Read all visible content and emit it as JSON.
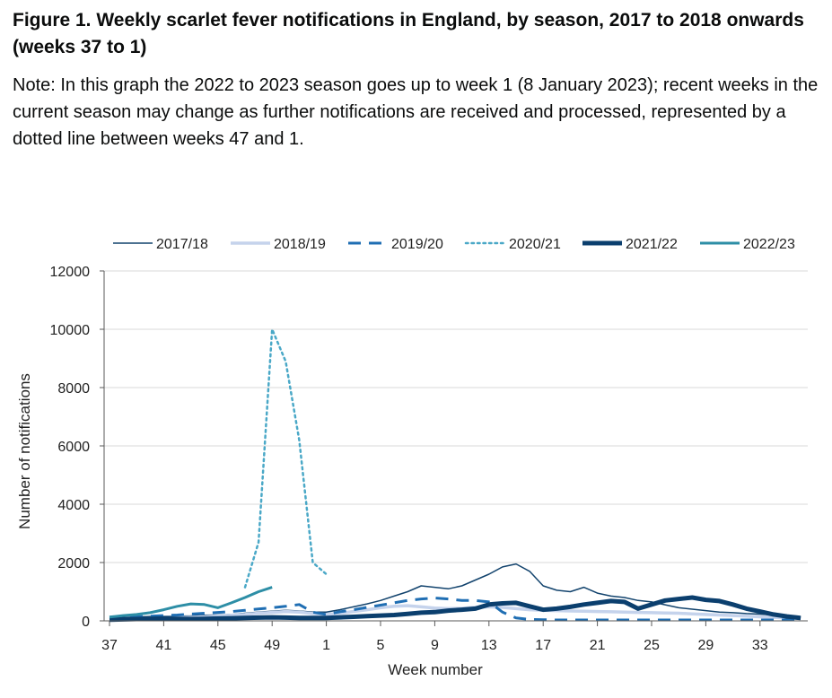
{
  "title": "Figure 1. Weekly scarlet fever notifications in England, by season, 2017 to 2018 onwards (weeks 37 to 1)",
  "note": "Note: In this graph the 2022 to 2023 season goes up to week 1 (8 January 2023); recent weeks in the current season may change as further notifications are received and processed, represented by a dotted line between weeks 47 and 1.",
  "chart_data": {
    "type": "line",
    "xlabel": "Week number",
    "ylabel": "Number of notifications",
    "ylim": [
      0,
      12000
    ],
    "yticks": [
      "0",
      "2000",
      "4000",
      "6000",
      "8000",
      "10000",
      "12000"
    ],
    "xtick_labels": [
      "37",
      "41",
      "45",
      "49",
      "1",
      "5",
      "9",
      "13",
      "17",
      "21",
      "25",
      "29",
      "33"
    ],
    "weeks": [
      "37",
      "38",
      "39",
      "40",
      "41",
      "42",
      "43",
      "44",
      "45",
      "46",
      "47",
      "48",
      "49",
      "50",
      "51",
      "52",
      "1",
      "2",
      "3",
      "4",
      "5",
      "6",
      "7",
      "8",
      "9",
      "10",
      "11",
      "12",
      "13",
      "14",
      "15",
      "16",
      "17",
      "18",
      "19",
      "20",
      "21",
      "22",
      "23",
      "24",
      "25",
      "26",
      "27",
      "28",
      "29",
      "30",
      "31",
      "32",
      "33",
      "34",
      "35",
      "36"
    ],
    "legend_position": "top",
    "grid": "horizontal",
    "series": [
      {
        "name": "2017/18",
        "color": "#12436d",
        "dash": "solid",
        "width": 1.5,
        "values": [
          100,
          120,
          130,
          150,
          150,
          160,
          170,
          190,
          200,
          220,
          260,
          300,
          330,
          360,
          340,
          300,
          300,
          380,
          480,
          580,
          700,
          850,
          1000,
          1200,
          1150,
          1100,
          1200,
          1400,
          1600,
          1850,
          1950,
          1700,
          1200,
          1050,
          1000,
          1150,
          950,
          850,
          800,
          700,
          650,
          550,
          450,
          400,
          350,
          300,
          280,
          250,
          230,
          200,
          150,
          120
        ]
      },
      {
        "name": "2018/19",
        "color": "#c5d3ec",
        "dash": "solid",
        "width": 3.5,
        "values": [
          60,
          70,
          80,
          90,
          100,
          110,
          120,
          140,
          160,
          190,
          220,
          260,
          290,
          320,
          300,
          250,
          220,
          260,
          320,
          380,
          450,
          500,
          520,
          480,
          440,
          420,
          430,
          460,
          480,
          460,
          420,
          380,
          360,
          350,
          340,
          330,
          320,
          310,
          300,
          290,
          280,
          270,
          260,
          240,
          220,
          200,
          180,
          160,
          140,
          120,
          100,
          80
        ]
      },
      {
        "name": "2019/20",
        "color": "#1f6eb3",
        "dash": "dashed",
        "width": 3,
        "values": [
          120,
          130,
          140,
          160,
          180,
          200,
          230,
          260,
          290,
          320,
          360,
          410,
          450,
          500,
          560,
          300,
          220,
          310,
          380,
          460,
          540,
          620,
          700,
          750,
          780,
          750,
          700,
          700,
          650,
          300,
          100,
          50,
          40,
          30,
          30,
          30,
          30,
          30,
          30,
          30,
          30,
          30,
          30,
          30,
          30,
          30,
          30,
          30,
          30,
          30,
          30,
          30
        ]
      },
      {
        "name": "2020/21",
        "color": "#4aa8c7",
        "dash": "dotted",
        "width": 2.5,
        "values": [
          null,
          null,
          null,
          null,
          null,
          null,
          null,
          null,
          null,
          null,
          1150,
          2700,
          10000,
          8900,
          6200,
          2000,
          1600,
          null,
          null,
          null,
          null,
          null,
          null,
          null,
          null,
          null,
          null,
          null,
          null,
          null,
          null,
          null,
          null,
          null,
          null,
          null,
          null,
          null,
          null,
          null,
          null,
          null,
          null,
          null,
          null,
          null,
          null,
          null,
          null,
          null,
          null,
          null
        ]
      },
      {
        "name": "2021/22",
        "color": "#0b3f6e",
        "dash": "solid",
        "width": 5,
        "values": [
          40,
          50,
          60,
          70,
          80,
          70,
          60,
          70,
          80,
          90,
          100,
          110,
          120,
          110,
          100,
          100,
          100,
          120,
          140,
          160,
          180,
          200,
          240,
          280,
          300,
          350,
          380,
          420,
          560,
          600,
          620,
          500,
          380,
          420,
          480,
          560,
          620,
          680,
          650,
          420,
          560,
          700,
          750,
          800,
          720,
          680,
          560,
          420,
          320,
          220,
          150,
          100
        ]
      },
      {
        "name": "2022/23",
        "color": "#2d8ea6",
        "dash": "solid",
        "width": 3,
        "values": [
          130,
          180,
          220,
          280,
          380,
          500,
          580,
          560,
          450,
          620,
          800,
          1000,
          1150,
          null,
          null,
          null,
          null,
          null,
          null,
          null,
          null,
          null,
          null,
          null,
          null,
          null,
          null,
          null,
          null,
          null,
          null,
          null,
          null,
          null,
          null,
          null,
          null,
          null,
          null,
          null,
          null,
          null,
          null,
          null,
          null,
          null,
          null,
          null,
          null,
          null,
          null,
          null
        ]
      }
    ]
  }
}
